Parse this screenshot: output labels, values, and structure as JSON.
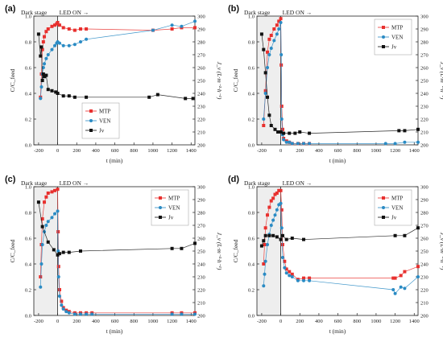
{
  "chart_data": [
    {
      "panel": "(a)",
      "type": "line",
      "xlabel": "t (min)",
      "ylabel_left": "C/C_feed",
      "ylabel_right": "J_v (L·m⁻²·h⁻¹)",
      "xlim": [
        -250,
        1440
      ],
      "ylim_left": [
        0,
        1.0
      ],
      "ylim_right": [
        200,
        300
      ],
      "xticks": [
        -200,
        0,
        200,
        400,
        600,
        800,
        1000,
        1200,
        1400
      ],
      "yticks_left": [
        0.0,
        0.2,
        0.4,
        0.6,
        0.8,
        1.0
      ],
      "yticks_right": [
        200,
        210,
        220,
        230,
        240,
        250,
        260,
        270,
        280,
        290,
        300
      ],
      "annotations": [
        "Dark stage",
        "LED ON →"
      ],
      "legend_position": "bottom-center",
      "series": [
        {
          "name": "MTP",
          "axis": "left",
          "color": "#e8302e",
          "marker": "square",
          "x": [
            -180,
            -170,
            -160,
            -150,
            -140,
            -120,
            -100,
            -60,
            -30,
            -10,
            0,
            20,
            60,
            120,
            180,
            240,
            300,
            1000,
            1200,
            1300,
            1440
          ],
          "y": [
            0.37,
            0.55,
            0.74,
            0.8,
            0.84,
            0.88,
            0.9,
            0.92,
            0.93,
            0.94,
            0.95,
            0.93,
            0.91,
            0.9,
            0.89,
            0.9,
            0.9,
            0.89,
            0.9,
            0.91,
            0.91
          ]
        },
        {
          "name": "VEN",
          "axis": "left",
          "color": "#2a8bc4",
          "marker": "circle",
          "x": [
            -180,
            -170,
            -160,
            -150,
            -140,
            -120,
            -100,
            -60,
            -30,
            -10,
            0,
            20,
            60,
            120,
            180,
            240,
            300,
            1000,
            1200,
            1300,
            1440
          ],
          "y": [
            0.36,
            0.45,
            0.55,
            0.6,
            0.63,
            0.67,
            0.7,
            0.74,
            0.77,
            0.79,
            0.8,
            0.79,
            0.77,
            0.77,
            0.78,
            0.8,
            0.82,
            0.89,
            0.93,
            0.92,
            0.96
          ]
        },
        {
          "name": "Jv",
          "axis": "right",
          "color": "#111111",
          "marker": "square",
          "x": [
            -200,
            -180,
            -170,
            -160,
            -150,
            -140,
            -120,
            -100,
            -60,
            -20,
            0,
            60,
            120,
            180,
            300,
            960,
            1050,
            1340,
            1420
          ],
          "y": [
            286,
            269,
            276,
            250,
            255,
            253,
            254,
            243,
            242,
            241,
            240,
            238,
            238,
            237,
            237,
            237,
            239,
            236,
            236
          ]
        }
      ]
    },
    {
      "panel": "(b)",
      "type": "line",
      "xlabel": "t (min)",
      "ylabel_left": "C/C_feed",
      "ylabel_right": "J_v (L·m⁻²·h⁻¹)",
      "xlim": [
        -250,
        1440
      ],
      "ylim_left": [
        0,
        1.0
      ],
      "ylim_right": [
        200,
        300
      ],
      "xticks": [
        -200,
        0,
        200,
        400,
        600,
        800,
        1000,
        1200,
        1400
      ],
      "yticks_left": [
        0.0,
        0.2,
        0.4,
        0.6,
        0.8,
        1.0
      ],
      "yticks_right": [
        200,
        210,
        220,
        230,
        240,
        250,
        260,
        270,
        280,
        290,
        300
      ],
      "annotations": [
        "Dark stage",
        "LED ON →"
      ],
      "legend_position": "top-right",
      "series": [
        {
          "name": "MTP",
          "axis": "left",
          "color": "#e8302e",
          "marker": "square",
          "x": [
            -180,
            -160,
            -140,
            -120,
            -100,
            -70,
            -40,
            -20,
            0,
            5,
            10,
            20,
            30,
            60,
            90,
            120,
            180,
            240,
            300
          ],
          "y": [
            0.15,
            0.42,
            0.72,
            0.82,
            0.85,
            0.9,
            0.93,
            0.96,
            0.98,
            0.62,
            0.3,
            0.12,
            0.05,
            0.03,
            0.02,
            0.01,
            0.01,
            0.01,
            0.01
          ]
        },
        {
          "name": "VEN",
          "axis": "left",
          "color": "#2a8bc4",
          "marker": "circle",
          "x": [
            -180,
            -160,
            -140,
            -120,
            -100,
            -70,
            -40,
            -20,
            0,
            5,
            10,
            20,
            30,
            60,
            90,
            120,
            180,
            240,
            300,
            1100,
            1200,
            1300,
            1440
          ],
          "y": [
            0.2,
            0.4,
            0.6,
            0.7,
            0.75,
            0.81,
            0.86,
            0.9,
            0.95,
            0.7,
            0.2,
            0.08,
            0.04,
            0.02,
            0.02,
            0.01,
            0.01,
            0.01,
            0.01,
            0.01,
            0.01,
            0.02,
            0.02
          ]
        },
        {
          "name": "Jv",
          "axis": "right",
          "color": "#111111",
          "marker": "square",
          "x": [
            -200,
            -180,
            -160,
            -140,
            -120,
            -100,
            -60,
            -30,
            0,
            30,
            90,
            150,
            200,
            300,
            1240,
            1300,
            1440
          ],
          "y": [
            286,
            274,
            256,
            237,
            223,
            215,
            212,
            210,
            210,
            209,
            209,
            209,
            210,
            209,
            211,
            211,
            212
          ]
        }
      ]
    },
    {
      "panel": "(c)",
      "type": "line",
      "xlabel": "t (min)",
      "ylabel_left": "C/C_feed",
      "ylabel_right": "J_v (L·m⁻²·h⁻¹)",
      "xlim": [
        -250,
        1440
      ],
      "ylim_left": [
        0,
        1.0
      ],
      "ylim_right": [
        200,
        300
      ],
      "xticks": [
        -200,
        0,
        200,
        400,
        600,
        800,
        1000,
        1200,
        1400
      ],
      "yticks_left": [
        0.0,
        0.2,
        0.4,
        0.6,
        0.8,
        1.0
      ],
      "yticks_right": [
        200,
        210,
        220,
        230,
        240,
        250,
        260,
        270,
        280,
        290,
        300
      ],
      "annotations": [
        "Dark stage",
        "LED ON →"
      ],
      "legend_position": "top-right",
      "series": [
        {
          "name": "MTP",
          "axis": "left",
          "color": "#e8302e",
          "marker": "square",
          "x": [
            -180,
            -170,
            -160,
            -140,
            -120,
            -100,
            -60,
            -30,
            0,
            5,
            10,
            20,
            40,
            60,
            90,
            120,
            180,
            240,
            300,
            360,
            1200,
            1300,
            1440
          ],
          "y": [
            0.3,
            0.55,
            0.75,
            0.88,
            0.92,
            0.95,
            0.96,
            0.97,
            0.98,
            0.65,
            0.38,
            0.2,
            0.11,
            0.06,
            0.04,
            0.03,
            0.02,
            0.02,
            0.02,
            0.02,
            0.02,
            0.02,
            0.02
          ]
        },
        {
          "name": "VEN",
          "axis": "left",
          "color": "#2a8bc4",
          "marker": "circle",
          "x": [
            -180,
            -170,
            -160,
            -140,
            -120,
            -100,
            -60,
            -30,
            0,
            5,
            10,
            20,
            40,
            60,
            90,
            120,
            180,
            240,
            300,
            360,
            1200,
            1300,
            1440
          ],
          "y": [
            0.22,
            0.4,
            0.55,
            0.65,
            0.7,
            0.73,
            0.76,
            0.79,
            0.81,
            0.5,
            0.3,
            0.15,
            0.08,
            0.05,
            0.03,
            0.02,
            0.01,
            0.01,
            0.01,
            0.01,
            0.01,
            0.01,
            0.01
          ]
        },
        {
          "name": "Jv",
          "axis": "right",
          "color": "#111111",
          "marker": "square",
          "x": [
            -200,
            -160,
            -100,
            -40,
            0,
            20,
            60,
            120,
            240,
            1200,
            1300,
            1440
          ],
          "y": [
            288,
            269,
            257,
            251,
            247,
            248,
            249,
            249,
            250,
            252,
            252,
            256
          ]
        }
      ]
    },
    {
      "panel": "(d)",
      "type": "line",
      "xlabel": "t (min)",
      "ylabel_left": "C/C_feed",
      "ylabel_right": "J_v (L·m⁻²·h⁻¹)",
      "xlim": [
        -250,
        1440
      ],
      "ylim_left": [
        0,
        1.0
      ],
      "ylim_right": [
        200,
        300
      ],
      "xticks": [
        -200,
        0,
        200,
        400,
        600,
        800,
        1000,
        1200,
        1400
      ],
      "yticks_left": [
        0.0,
        0.2,
        0.4,
        0.6,
        0.8,
        1.0
      ],
      "yticks_right": [
        200,
        210,
        220,
        230,
        240,
        250,
        260,
        270,
        280,
        290,
        300
      ],
      "annotations": [
        "Dark stage",
        "LED ON →"
      ],
      "legend_position": "top-right",
      "series": [
        {
          "name": "MTP",
          "axis": "left",
          "color": "#e8302e",
          "marker": "square",
          "x": [
            -180,
            -170,
            -160,
            -140,
            -120,
            -100,
            -80,
            -60,
            -40,
            -20,
            0,
            10,
            20,
            40,
            60,
            90,
            120,
            180,
            240,
            300,
            1180,
            1200,
            1260,
            1300,
            1440
          ],
          "y": [
            0.4,
            0.55,
            0.68,
            0.78,
            0.84,
            0.89,
            0.91,
            0.94,
            0.95,
            0.97,
            0.97,
            0.82,
            0.55,
            0.42,
            0.36,
            0.34,
            0.32,
            0.28,
            0.29,
            0.29,
            0.29,
            0.29,
            0.31,
            0.34,
            0.38
          ]
        },
        {
          "name": "VEN",
          "axis": "left",
          "color": "#2a8bc4",
          "marker": "circle",
          "x": [
            -180,
            -170,
            -160,
            -140,
            -120,
            -100,
            -80,
            -60,
            -40,
            -20,
            0,
            10,
            20,
            40,
            60,
            90,
            120,
            180,
            240,
            300,
            1180,
            1200,
            1260,
            1300,
            1440
          ],
          "y": [
            0.23,
            0.32,
            0.42,
            0.55,
            0.63,
            0.7,
            0.74,
            0.78,
            0.82,
            0.86,
            0.87,
            0.68,
            0.45,
            0.37,
            0.33,
            0.31,
            0.3,
            0.27,
            0.27,
            0.27,
            0.2,
            0.17,
            0.22,
            0.21,
            0.3
          ]
        },
        {
          "name": "Jv",
          "axis": "right",
          "color": "#111111",
          "marker": "square",
          "x": [
            -200,
            -180,
            -160,
            -120,
            -80,
            -40,
            0,
            20,
            60,
            120,
            240,
            1200,
            1300,
            1440
          ],
          "y": [
            254,
            258,
            262,
            262,
            262,
            261,
            259,
            262,
            259,
            260,
            259,
            262,
            262,
            268
          ]
        }
      ]
    }
  ]
}
